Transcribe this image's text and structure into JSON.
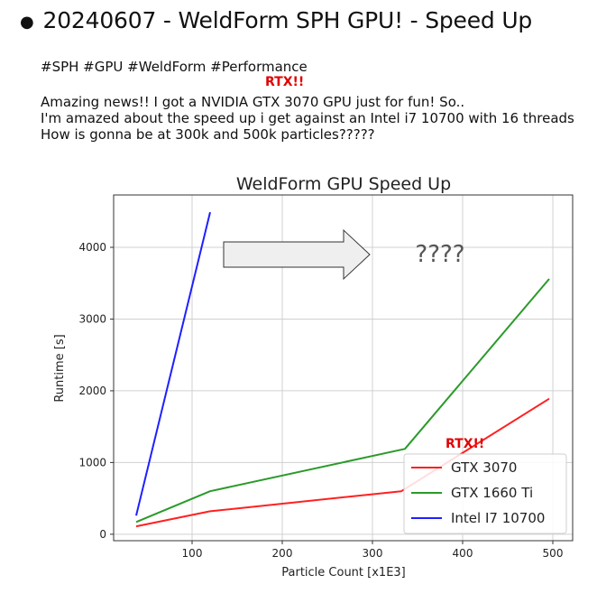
{
  "post": {
    "title": "20240607 - WeldForm SPH GPU! - Speed Up",
    "tags": "#SPH #GPU #WeldForm #Performance",
    "annotation_top": "RTX!!",
    "lines": [
      "Amazing news!! I got a NVIDIA GTX 3070 GPU just for fun! So..",
      "I'm amazed about the speed up i get against an Intel i7 10700 with 16 threads",
      "How is gonna be at 300k and 500k particles?????"
    ]
  },
  "chart_data": {
    "type": "line",
    "title": "WeldForm GPU Speed Up",
    "xlabel": "Particle Count [x1E3]",
    "ylabel": "Runtime [s]",
    "xlim": [
      13,
      522
    ],
    "ylim": [
      -90,
      4730
    ],
    "xticks": [
      100,
      200,
      300,
      400,
      500
    ],
    "yticks": [
      0,
      1000,
      2000,
      3000,
      4000
    ],
    "grid": true,
    "legend_position": "lower-right",
    "series": [
      {
        "name": "GTX 3070",
        "color": "#ff2020",
        "x": [
          38,
          120,
          332,
          496
        ],
        "y": [
          110,
          320,
          600,
          1890
        ]
      },
      {
        "name": "GTX 1660 Ti",
        "color": "#2a9a2a",
        "x": [
          38,
          120,
          336,
          496
        ],
        "y": [
          170,
          600,
          1190,
          3560
        ]
      },
      {
        "name": "Intel I7 10700",
        "color": "#1f1fff",
        "x": [
          38,
          120
        ],
        "y": [
          260,
          4490
        ]
      }
    ],
    "annotations": {
      "question": "????",
      "rtx": "RTX!!"
    }
  }
}
